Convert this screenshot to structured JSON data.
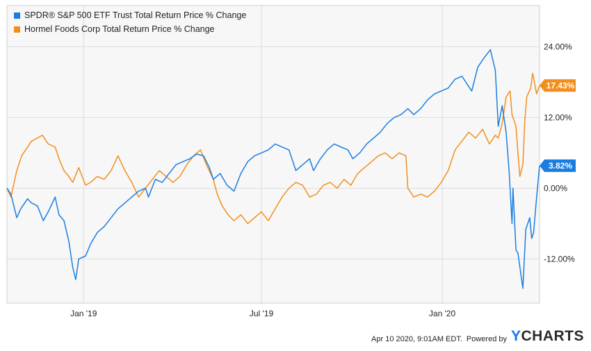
{
  "chart_data": {
    "type": "line",
    "title": "",
    "xlabel": "",
    "ylabel": "",
    "ylim": [
      -19.5,
      31
    ],
    "x_ticks": [
      {
        "label": "Jan '19",
        "date": "2019-01-01"
      },
      {
        "label": "Jul '19",
        "date": "2019-07-01"
      },
      {
        "label": "Jan '20",
        "date": "2020-01-01"
      }
    ],
    "y_ticks": [
      {
        "label": "24.00%",
        "value": 24
      },
      {
        "label": "12.00%",
        "value": 12
      },
      {
        "label": "0.00%",
        "value": 0
      },
      {
        "label": "-12.00%",
        "value": -12
      }
    ],
    "x_range": [
      "2018-10-15",
      "2020-04-09"
    ],
    "grid": true,
    "legend_position": "top-left",
    "series": [
      {
        "name": "SPDR® S&P 500 ETF Trust Total Return Price % Change",
        "color": "#1a7ee0",
        "end_label": "3.82%",
        "points": [
          [
            "2018-10-15",
            0.0
          ],
          [
            "2018-10-19",
            -1.0
          ],
          [
            "2018-10-25",
            -5.0
          ],
          [
            "2018-10-29",
            -3.5
          ],
          [
            "2018-11-05",
            -1.8
          ],
          [
            "2018-11-09",
            -2.5
          ],
          [
            "2018-11-15",
            -3.0
          ],
          [
            "2018-11-21",
            -5.5
          ],
          [
            "2018-11-26",
            -4.0
          ],
          [
            "2018-12-03",
            -1.5
          ],
          [
            "2018-12-07",
            -4.5
          ],
          [
            "2018-12-12",
            -5.5
          ],
          [
            "2018-12-17",
            -9.0
          ],
          [
            "2018-12-21",
            -13.5
          ],
          [
            "2018-12-24",
            -15.5
          ],
          [
            "2018-12-27",
            -12.0
          ],
          [
            "2019-01-03",
            -11.5
          ],
          [
            "2019-01-08",
            -9.5
          ],
          [
            "2019-01-15",
            -7.5
          ],
          [
            "2019-01-22",
            -6.5
          ],
          [
            "2019-01-29",
            -5.0
          ],
          [
            "2019-02-05",
            -3.5
          ],
          [
            "2019-02-12",
            -2.5
          ],
          [
            "2019-02-19",
            -1.5
          ],
          [
            "2019-02-26",
            -0.5
          ],
          [
            "2019-03-05",
            0.0
          ],
          [
            "2019-03-08",
            -1.5
          ],
          [
            "2019-03-15",
            1.5
          ],
          [
            "2019-03-22",
            1.0
          ],
          [
            "2019-03-29",
            2.5
          ],
          [
            "2019-04-05",
            4.0
          ],
          [
            "2019-04-12",
            4.5
          ],
          [
            "2019-04-19",
            5.0
          ],
          [
            "2019-04-26",
            5.8
          ],
          [
            "2019-05-03",
            5.5
          ],
          [
            "2019-05-09",
            3.5
          ],
          [
            "2019-05-13",
            1.5
          ],
          [
            "2019-05-20",
            2.5
          ],
          [
            "2019-05-27",
            0.5
          ],
          [
            "2019-06-03",
            -0.5
          ],
          [
            "2019-06-10",
            2.5
          ],
          [
            "2019-06-17",
            4.5
          ],
          [
            "2019-06-24",
            5.5
          ],
          [
            "2019-07-01",
            6.0
          ],
          [
            "2019-07-08",
            6.5
          ],
          [
            "2019-07-15",
            7.5
          ],
          [
            "2019-07-22",
            7.0
          ],
          [
            "2019-07-29",
            6.5
          ],
          [
            "2019-08-05",
            3.0
          ],
          [
            "2019-08-12",
            4.0
          ],
          [
            "2019-08-19",
            5.0
          ],
          [
            "2019-08-23",
            3.0
          ],
          [
            "2019-08-30",
            5.0
          ],
          [
            "2019-09-06",
            6.5
          ],
          [
            "2019-09-13",
            7.5
          ],
          [
            "2019-09-20",
            7.0
          ],
          [
            "2019-09-27",
            6.5
          ],
          [
            "2019-10-02",
            5.0
          ],
          [
            "2019-10-09",
            6.0
          ],
          [
            "2019-10-16",
            7.5
          ],
          [
            "2019-10-23",
            8.5
          ],
          [
            "2019-10-30",
            9.5
          ],
          [
            "2019-11-06",
            11.0
          ],
          [
            "2019-11-13",
            12.0
          ],
          [
            "2019-11-20",
            12.5
          ],
          [
            "2019-11-27",
            13.5
          ],
          [
            "2019-12-03",
            12.5
          ],
          [
            "2019-12-10",
            13.5
          ],
          [
            "2019-12-17",
            15.0
          ],
          [
            "2019-12-24",
            16.0
          ],
          [
            "2019-12-31",
            16.5
          ],
          [
            "2020-01-07",
            17.0
          ],
          [
            "2020-01-14",
            18.5
          ],
          [
            "2020-01-21",
            19.0
          ],
          [
            "2020-01-27",
            17.5
          ],
          [
            "2020-01-31",
            16.5
          ],
          [
            "2020-02-06",
            20.5
          ],
          [
            "2020-02-12",
            22.0
          ],
          [
            "2020-02-19",
            23.5
          ],
          [
            "2020-02-24",
            20.0
          ],
          [
            "2020-02-27",
            10.5
          ],
          [
            "2020-03-02",
            14.0
          ],
          [
            "2020-03-06",
            9.5
          ],
          [
            "2020-03-09",
            3.0
          ],
          [
            "2020-03-12",
            -6.0
          ],
          [
            "2020-03-13",
            0.0
          ],
          [
            "2020-03-16",
            -10.5
          ],
          [
            "2020-03-18",
            -11.0
          ],
          [
            "2020-03-23",
            -17.0
          ],
          [
            "2020-03-26",
            -7.0
          ],
          [
            "2020-03-30",
            -5.0
          ],
          [
            "2020-04-01",
            -8.5
          ],
          [
            "2020-04-03",
            -7.5
          ],
          [
            "2020-04-06",
            -1.5
          ],
          [
            "2020-04-09",
            3.82
          ]
        ]
      },
      {
        "name": "Hormel Foods Corp Total Return Price % Change",
        "color": "#f28e1c",
        "end_label": "17.43%",
        "points": [
          [
            "2018-10-15",
            0.0
          ],
          [
            "2018-10-19",
            -1.5
          ],
          [
            "2018-10-25",
            3.0
          ],
          [
            "2018-10-30",
            5.5
          ],
          [
            "2018-11-05",
            7.0
          ],
          [
            "2018-11-09",
            8.0
          ],
          [
            "2018-11-15",
            8.5
          ],
          [
            "2018-11-20",
            9.0
          ],
          [
            "2018-11-26",
            7.5
          ],
          [
            "2018-12-03",
            7.0
          ],
          [
            "2018-12-07",
            5.0
          ],
          [
            "2018-12-12",
            3.0
          ],
          [
            "2018-12-17",
            2.0
          ],
          [
            "2018-12-21",
            1.0
          ],
          [
            "2018-12-27",
            3.5
          ],
          [
            "2019-01-03",
            0.5
          ],
          [
            "2019-01-08",
            1.0
          ],
          [
            "2019-01-15",
            2.0
          ],
          [
            "2019-01-22",
            1.5
          ],
          [
            "2019-01-29",
            3.0
          ],
          [
            "2019-02-05",
            5.5
          ],
          [
            "2019-02-12",
            3.0
          ],
          [
            "2019-02-19",
            1.0
          ],
          [
            "2019-02-26",
            -1.5
          ],
          [
            "2019-03-05",
            0.0
          ],
          [
            "2019-03-12",
            1.5
          ],
          [
            "2019-03-19",
            3.0
          ],
          [
            "2019-03-26",
            2.0
          ],
          [
            "2019-04-02",
            1.0
          ],
          [
            "2019-04-09",
            2.0
          ],
          [
            "2019-04-16",
            4.0
          ],
          [
            "2019-04-23",
            5.5
          ],
          [
            "2019-04-30",
            6.5
          ],
          [
            "2019-05-06",
            4.0
          ],
          [
            "2019-05-13",
            1.5
          ],
          [
            "2019-05-17",
            -1.0
          ],
          [
            "2019-05-22",
            -3.0
          ],
          [
            "2019-05-28",
            -4.5
          ],
          [
            "2019-06-03",
            -5.5
          ],
          [
            "2019-06-10",
            -4.5
          ],
          [
            "2019-06-17",
            -6.0
          ],
          [
            "2019-06-24",
            -5.0
          ],
          [
            "2019-07-01",
            -4.0
          ],
          [
            "2019-07-08",
            -5.5
          ],
          [
            "2019-07-15",
            -3.5
          ],
          [
            "2019-07-22",
            -1.5
          ],
          [
            "2019-07-29",
            0.0
          ],
          [
            "2019-08-05",
            1.0
          ],
          [
            "2019-08-12",
            0.5
          ],
          [
            "2019-08-19",
            -1.5
          ],
          [
            "2019-08-26",
            -1.0
          ],
          [
            "2019-09-02",
            0.5
          ],
          [
            "2019-09-09",
            1.0
          ],
          [
            "2019-09-16",
            0.0
          ],
          [
            "2019-09-23",
            1.5
          ],
          [
            "2019-09-30",
            0.5
          ],
          [
            "2019-10-07",
            2.5
          ],
          [
            "2019-10-14",
            3.5
          ],
          [
            "2019-10-21",
            4.5
          ],
          [
            "2019-10-28",
            5.5
          ],
          [
            "2019-11-04",
            6.0
          ],
          [
            "2019-11-11",
            5.0
          ],
          [
            "2019-11-18",
            6.0
          ],
          [
            "2019-11-25",
            5.5
          ],
          [
            "2019-11-27",
            0.0
          ],
          [
            "2019-12-03",
            -1.5
          ],
          [
            "2019-12-10",
            -1.0
          ],
          [
            "2019-12-17",
            -1.5
          ],
          [
            "2019-12-24",
            -0.5
          ],
          [
            "2019-12-31",
            1.0
          ],
          [
            "2020-01-07",
            3.0
          ],
          [
            "2020-01-14",
            6.5
          ],
          [
            "2020-01-21",
            8.0
          ],
          [
            "2020-01-28",
            9.5
          ],
          [
            "2020-02-04",
            8.5
          ],
          [
            "2020-02-11",
            10.0
          ],
          [
            "2020-02-18",
            7.5
          ],
          [
            "2020-02-24",
            9.0
          ],
          [
            "2020-02-27",
            8.5
          ],
          [
            "2020-03-02",
            11.0
          ],
          [
            "2020-03-06",
            15.5
          ],
          [
            "2020-03-10",
            16.5
          ],
          [
            "2020-03-12",
            12.5
          ],
          [
            "2020-03-14",
            11.5
          ],
          [
            "2020-03-16",
            10.5
          ],
          [
            "2020-03-18",
            6.0
          ],
          [
            "2020-03-20",
            2.0
          ],
          [
            "2020-03-23",
            4.0
          ],
          [
            "2020-03-25",
            11.5
          ],
          [
            "2020-03-27",
            15.5
          ],
          [
            "2020-03-31",
            17.0
          ],
          [
            "2020-04-02",
            19.5
          ],
          [
            "2020-04-06",
            16.0
          ],
          [
            "2020-04-09",
            17.43
          ]
        ]
      }
    ]
  },
  "footer": {
    "timestamp": "Apr 10 2020, 9:01AM EDT.",
    "powered_by": "Powered by",
    "brand_y": "Y",
    "brand_rest": "CHARTS"
  }
}
